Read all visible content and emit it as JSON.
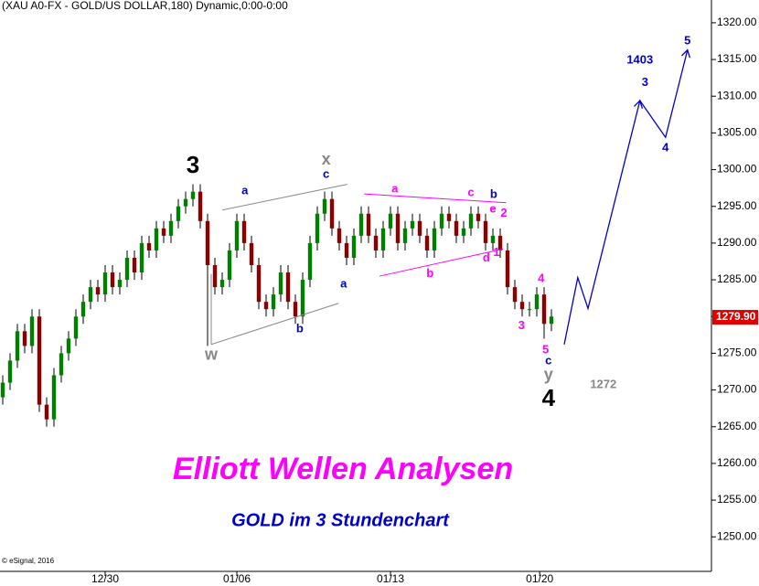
{
  "chart_data": {
    "type": "candlestick",
    "title": "(XAU A0-FX - GOLD/US DOLLAR,180) Dynamic,0:00-0:00",
    "headline": "Elliott Wellen Analysen",
    "subheadline": "GOLD im 3 Stundenchart",
    "credit": "© eSignal, 2016",
    "up_color": "#008000",
    "down_color": "#8b0000",
    "xlim": [
      -0.375,
      96.875
    ],
    "ylim": [
      1245.3,
      1323.1
    ],
    "xticks": [
      {
        "value": 14,
        "label": "12/30"
      },
      {
        "value": 32,
        "label": "01/06"
      },
      {
        "value": 53,
        "label": "01/13"
      },
      {
        "value": 73.4,
        "label": "01/20"
      }
    ],
    "yticks": [
      {
        "value": 1250,
        "label": "1250.00"
      },
      {
        "value": 1255,
        "label": "1255.00"
      },
      {
        "value": 1260,
        "label": "1260.00"
      },
      {
        "value": 1265,
        "label": "1265.00"
      },
      {
        "value": 1270,
        "label": "1270.00"
      },
      {
        "value": 1275,
        "label": "1275.00"
      },
      {
        "value": 1280,
        "label": "1280.00"
      },
      {
        "value": 1285,
        "label": "1285.00"
      },
      {
        "value": 1290,
        "label": "1290.00"
      },
      {
        "value": 1295,
        "label": "1295.00"
      },
      {
        "value": 1300,
        "label": "1300.00"
      },
      {
        "value": 1305,
        "label": "1305.00"
      },
      {
        "value": 1310,
        "label": "1310.00"
      },
      {
        "value": 1315,
        "label": "1315.00"
      },
      {
        "value": 1320,
        "label": "1320.00"
      }
    ],
    "last_price": {
      "value": 1279.9,
      "label": "1279.90",
      "color": "#e00000"
    },
    "open": [
      1269,
      1271,
      1274,
      1278,
      1276,
      1280,
      1268,
      1266,
      1272,
      1275,
      1277,
      1280,
      1282,
      1284,
      1283,
      1286,
      1284,
      1285,
      1288,
      1286,
      1290,
      1289,
      1292,
      1291,
      1293,
      1295,
      1296,
      1297,
      1293,
      1287,
      1284,
      1285,
      1289,
      1293,
      1290,
      1287,
      1282,
      1281,
      1283,
      1286,
      1282,
      1280,
      1285,
      1290,
      1294,
      1296,
      1292,
      1290,
      1288,
      1291,
      1294,
      1291,
      1289,
      1292,
      1294,
      1290,
      1292,
      1293,
      1291,
      1289,
      1292,
      1294,
      1293,
      1291,
      1292,
      1294,
      1293,
      1290,
      1291,
      1289,
      1284,
      1282,
      1281,
      1281,
      1283,
      1279
    ],
    "high": [
      1272,
      1275,
      1279,
      1279,
      1281,
      1281,
      1269,
      1273,
      1276,
      1278,
      1281,
      1283,
      1285,
      1285,
      1287,
      1287,
      1286,
      1289,
      1289,
      1291,
      1291,
      1293,
      1293,
      1294,
      1296,
      1297,
      1298,
      1298,
      1294,
      1288,
      1286,
      1290,
      1294,
      1294,
      1291,
      1288,
      1283,
      1284,
      1287,
      1287,
      1283,
      1286,
      1291,
      1295,
      1297,
      1297,
      1293,
      1291,
      1292,
      1295,
      1295,
      1292,
      1293,
      1295,
      1295,
      1293,
      1294,
      1294,
      1292,
      1293,
      1295,
      1295,
      1294,
      1293,
      1295,
      1295,
      1294,
      1292,
      1292,
      1290,
      1285,
      1283,
      1282,
      1284,
      1284,
      1281
    ],
    "low": [
      1268,
      1270,
      1273,
      1275,
      1275,
      1267,
      1265,
      1265,
      1271,
      1274,
      1276,
      1279,
      1281,
      1282,
      1282,
      1283,
      1283,
      1284,
      1285,
      1285,
      1288,
      1288,
      1290,
      1290,
      1292,
      1294,
      1295,
      1292,
      1276,
      1283,
      1283,
      1284,
      1288,
      1289,
      1286,
      1281,
      1280,
      1280,
      1282,
      1281,
      1279,
      1279,
      1284,
      1289,
      1293,
      1291,
      1289,
      1287,
      1287,
      1290,
      1290,
      1288,
      1288,
      1291,
      1289,
      1289,
      1291,
      1290,
      1288,
      1288,
      1291,
      1292,
      1290,
      1290,
      1291,
      1292,
      1289,
      1289,
      1288,
      1283,
      1281,
      1280,
      1280,
      1280,
      1277,
      1278
    ],
    "close": [
      1271,
      1274,
      1278,
      1276,
      1280,
      1268,
      1266,
      1272,
      1275,
      1277,
      1280,
      1282,
      1284,
      1283,
      1286,
      1284,
      1285,
      1288,
      1286,
      1290,
      1289,
      1292,
      1291,
      1293,
      1295,
      1296,
      1297,
      1293,
      1287,
      1284,
      1285,
      1289,
      1293,
      1290,
      1287,
      1282,
      1281,
      1283,
      1286,
      1282,
      1280,
      1285,
      1290,
      1294,
      1296,
      1292,
      1290,
      1288,
      1291,
      1294,
      1291,
      1289,
      1292,
      1294,
      1290,
      1292,
      1293,
      1291,
      1289,
      1292,
      1294,
      1293,
      1291,
      1292,
      1294,
      1293,
      1290,
      1291,
      1289,
      1284,
      1282,
      1281,
      1281,
      1283,
      1279,
      1280
    ],
    "forecast": {
      "color": "#0000cc",
      "x": [
        76.75,
        78.6,
        80,
        87.1,
        90.6,
        93.6
      ],
      "y": [
        1276.2,
        1285.3,
        1281.1,
        1309.4,
        1304.4,
        1316.3
      ]
    },
    "trend_lines": [
      {
        "color": "#888888",
        "x": [
          28.5,
          28.5
        ],
        "y": [
          1276.2,
          1285.8
        ]
      },
      {
        "color": "#888888",
        "x": [
          28.5,
          45.9
        ],
        "y": [
          1276.2,
          1281.8
        ]
      },
      {
        "color": "#888888",
        "x": [
          30,
          47.1
        ],
        "y": [
          1294.5,
          1298
        ]
      },
      {
        "color": "#ff00ff",
        "x": [
          49.4,
          68.8
        ],
        "y": [
          1296.7,
          1295.5
        ]
      },
      {
        "color": "#ff00ff",
        "x": [
          51.5,
          68.4
        ],
        "y": [
          1285.5,
          1289.2
        ]
      }
    ],
    "annotations": [
      {
        "text": "3",
        "color": "#000000",
        "x": 26,
        "y": 1300.4
      },
      {
        "text": "w",
        "color": "#888888",
        "x": 28.5,
        "y": 1274.7
      },
      {
        "text": "x",
        "color": "#888888",
        "x": 44.2,
        "y": 1301.3
      },
      {
        "text": "c",
        "color": "#0000cc",
        "x": 44.2,
        "y": 1299.3
      },
      {
        "text": "a",
        "color": "#0000cc",
        "x": 33.1,
        "y": 1297.1
      },
      {
        "text": "b",
        "color": "#0000cc",
        "x": 40.6,
        "y": 1278.3
      },
      {
        "text": "a",
        "color": "#0000cc",
        "x": 46.6,
        "y": 1284.4
      },
      {
        "text": "a",
        "color": "#ff00ff",
        "x": 53.6,
        "y": 1297.3
      },
      {
        "text": "b",
        "color": "#ff00ff",
        "x": 58.4,
        "y": 1285.8
      },
      {
        "text": "c",
        "color": "#ff00ff",
        "x": 64,
        "y": 1296.8
      },
      {
        "text": "b",
        "color": "#0000cc",
        "x": 67.1,
        "y": 1296.6
      },
      {
        "text": "e",
        "color": "#ff00ff",
        "x": 67,
        "y": 1294.6
      },
      {
        "text": "2",
        "color": "#ff00ff",
        "x": 68.5,
        "y": 1294
      },
      {
        "text": "d",
        "color": "#ff00ff",
        "x": 66.1,
        "y": 1287.9
      },
      {
        "text": "1",
        "color": "#ff00ff",
        "x": 67.5,
        "y": 1288.7
      },
      {
        "text": "4",
        "color": "#ff00ff",
        "x": 73.6,
        "y": 1285.1
      },
      {
        "text": "3",
        "color": "#ff00ff",
        "x": 70.9,
        "y": 1278.7
      },
      {
        "text": "5",
        "color": "#ff00ff",
        "x": 74.2,
        "y": 1275.4
      },
      {
        "text": "c",
        "color": "#0000cc",
        "x": 74.6,
        "y": 1273.9
      },
      {
        "text": "y",
        "color": "#888888",
        "x": 74.6,
        "y": 1272
      },
      {
        "text": "4",
        "color": "#000000",
        "x": 74.6,
        "y": 1268.7
      },
      {
        "text": "1403",
        "color": "#0000cc",
        "x": 87.1,
        "y": 1314.9
      },
      {
        "text": "3",
        "color": "#0000cc",
        "x": 87.8,
        "y": 1311.8
      },
      {
        "text": "4",
        "color": "#0000cc",
        "x": 90.6,
        "y": 1302.9
      },
      {
        "text": "5",
        "color": "#0000cc",
        "x": 93.6,
        "y": 1317.5
      },
      {
        "text": "1272",
        "color": "#888888",
        "x": 82.1,
        "y": 1270.7
      }
    ]
  }
}
